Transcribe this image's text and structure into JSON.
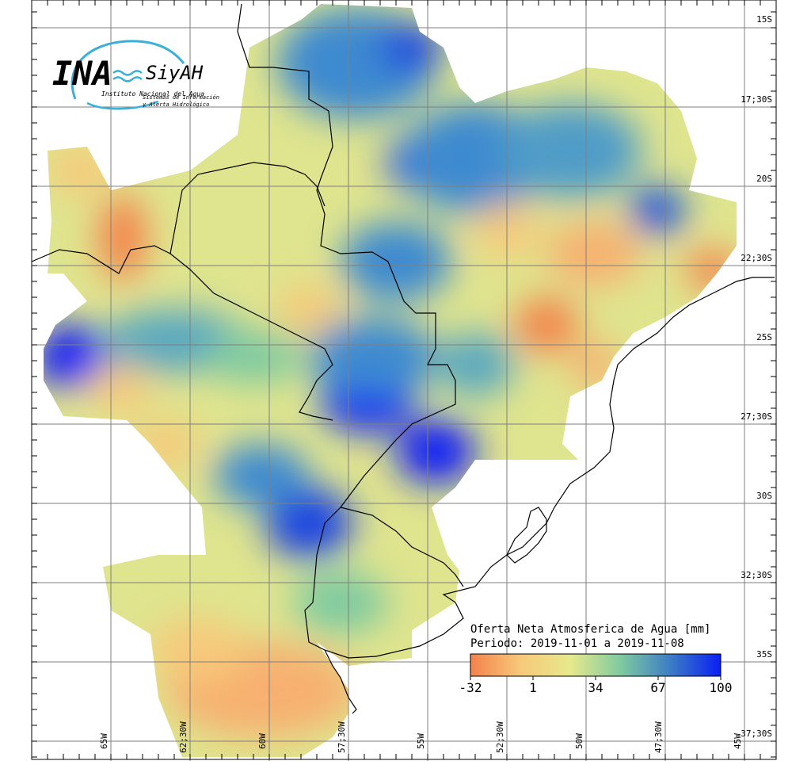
{
  "logo": {
    "main": "INA",
    "brand": "SiyAH",
    "org": "Instituto Nacional del Agua",
    "line1": "Sistemas de Información",
    "line2": "y Alerta Hidrológico"
  },
  "map": {
    "title": "Oferta Neta Atmosferica de Agua [mm]",
    "period": "Periodo: 2019-11-01 a 2019-11-08",
    "lat_labels": [
      "15S",
      "17;30S",
      "20S",
      "22;30S",
      "25S",
      "27;30S",
      "30S",
      "32;30S",
      "35S",
      "37;30S"
    ],
    "lon_labels": [
      "65W",
      "62;30W",
      "60W",
      "57;30W",
      "55W",
      "52;30W",
      "50W",
      "47;30W",
      "45W"
    ],
    "colorbar": {
      "ticks": [
        "-32",
        "1",
        "34",
        "67",
        "100"
      ],
      "min": -32,
      "max": 100,
      "colors": [
        "#f4824c",
        "#f7c97a",
        "#e6e98c",
        "#7fcaa0",
        "#3c7cc6",
        "#0a1ff5"
      ]
    },
    "colors": {
      "high": "#0a1ff5",
      "mid": "#3d8ad0",
      "low": "#f4824c",
      "neutral": "#dfe48e",
      "border": "#000000",
      "grid": "#7f7f7f"
    }
  }
}
